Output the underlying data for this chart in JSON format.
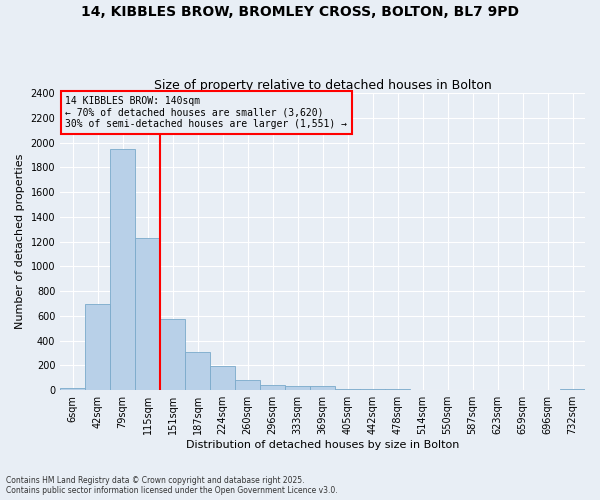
{
  "title_line1": "14, KIBBLES BROW, BROMLEY CROSS, BOLTON, BL7 9PD",
  "title_line2": "Size of property relative to detached houses in Bolton",
  "xlabel": "Distribution of detached houses by size in Bolton",
  "ylabel": "Number of detached properties",
  "bar_categories": [
    "6sqm",
    "42sqm",
    "79sqm",
    "115sqm",
    "151sqm",
    "187sqm",
    "224sqm",
    "260sqm",
    "296sqm",
    "333sqm",
    "369sqm",
    "405sqm",
    "442sqm",
    "478sqm",
    "514sqm",
    "550sqm",
    "587sqm",
    "623sqm",
    "659sqm",
    "696sqm",
    "732sqm"
  ],
  "bar_values": [
    15,
    700,
    1950,
    1230,
    575,
    305,
    195,
    80,
    43,
    35,
    30,
    10,
    8,
    12,
    5,
    5,
    2,
    2,
    2,
    2,
    10
  ],
  "bar_color": "#b8d0e8",
  "bar_edgecolor": "#7aaacb",
  "annotation_title": "14 KIBBLES BROW: 140sqm",
  "annotation_line2": "← 70% of detached houses are smaller (3,620)",
  "annotation_line3": "30% of semi-detached houses are larger (1,551) →",
  "vline_index": 4,
  "vline_color": "red",
  "annotation_box_color": "red",
  "ylim": [
    0,
    2400
  ],
  "yticks": [
    0,
    200,
    400,
    600,
    800,
    1000,
    1200,
    1400,
    1600,
    1800,
    2000,
    2200,
    2400
  ],
  "footnote": "Contains HM Land Registry data © Crown copyright and database right 2025.\nContains public sector information licensed under the Open Government Licence v3.0.",
  "bg_color": "#e8eef5",
  "grid_color": "#ffffff",
  "title_fontsize": 10,
  "subtitle_fontsize": 9,
  "ylabel_fontsize": 8,
  "xlabel_fontsize": 8,
  "tick_fontsize": 7,
  "annotation_fontsize": 7,
  "footnote_fontsize": 5.5
}
